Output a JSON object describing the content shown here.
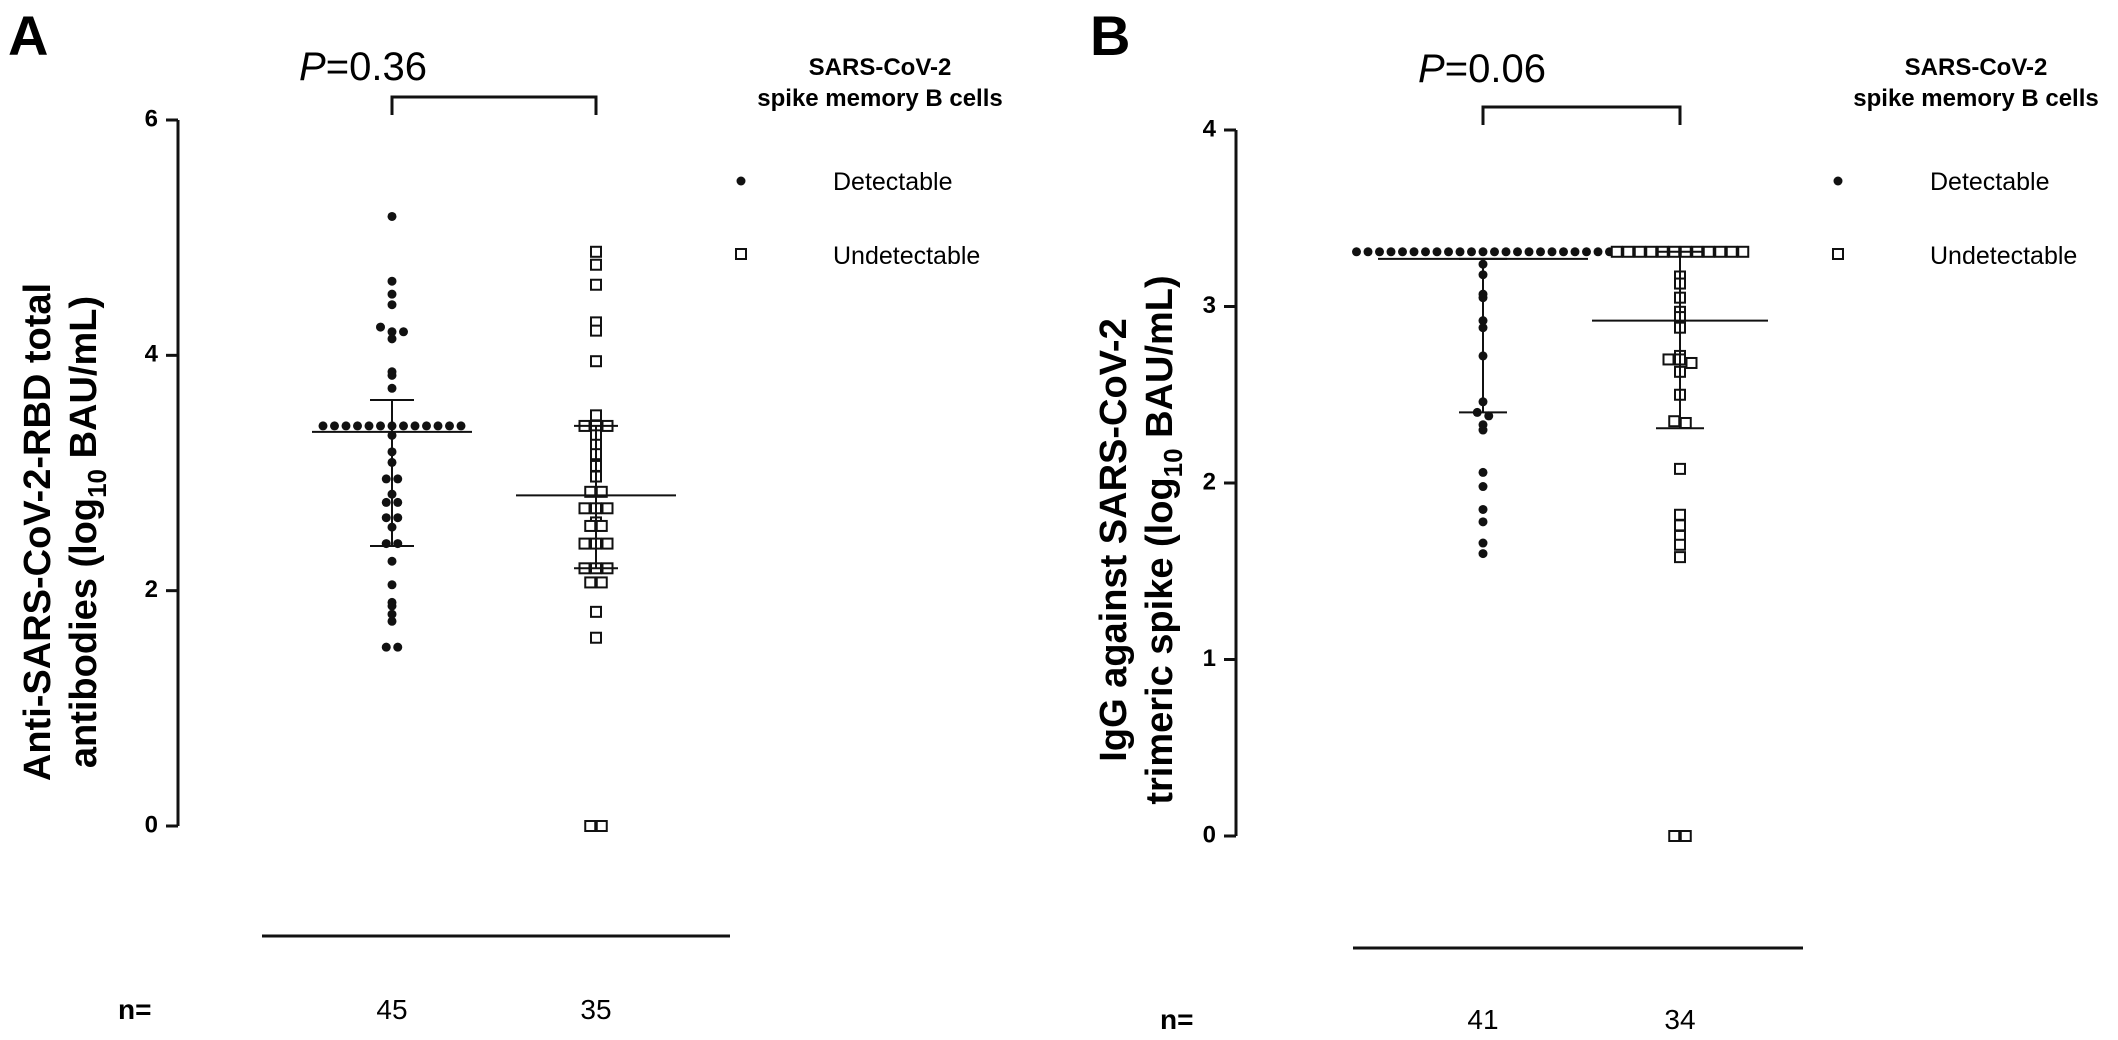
{
  "chart_data": [
    {
      "type": "scatter",
      "panel": "A",
      "ylabel_line1": "Anti-SARS-CoV-2-RBD total",
      "ylabel_line2_pre": "antibodies (log",
      "ylabel_line2_sub": "10",
      "ylabel_line2_post": " BAU/mL)",
      "ylim": [
        0,
        6
      ],
      "yticks": [
        "0",
        "2",
        "4",
        "6"
      ],
      "p_value_label": "P",
      "p_value_rest": "=0.36",
      "legend_title_1": "SARS-CoV-2",
      "legend_title_2": "spike memory B cells",
      "legend": [
        "Detectable",
        "Undetectable"
      ],
      "n_label": "n=",
      "groups": [
        {
          "name": "Detectable",
          "n": "45",
          "median": 3.35,
          "q1": 2.38,
          "q3": 3.62,
          "values": [
            5.18,
            4.63,
            4.52,
            4.43,
            4.24,
            4.2,
            4.2,
            4.14,
            3.86,
            3.83,
            3.72,
            3.4,
            3.4,
            3.4,
            3.4,
            3.4,
            3.4,
            3.4,
            3.4,
            3.4,
            3.4,
            3.4,
            3.4,
            3.4,
            3.32,
            3.18,
            3.09,
            2.95,
            2.95,
            2.82,
            2.75,
            2.75,
            2.62,
            2.62,
            2.54,
            2.4,
            2.4,
            2.25,
            2.05,
            1.9,
            1.87,
            1.8,
            1.74,
            1.52,
            1.52
          ]
        },
        {
          "name": "Undetectable",
          "n": "35",
          "median": 2.81,
          "q1": 2.19,
          "q3": 3.4,
          "values": [
            4.88,
            4.77,
            4.6,
            4.28,
            4.21,
            3.95,
            3.49,
            3.4,
            3.4,
            3.4,
            3.32,
            3.24,
            3.16,
            3.06,
            2.97,
            2.84,
            2.84,
            2.7,
            2.7,
            2.7,
            2.58,
            2.55,
            2.55,
            2.4,
            2.4,
            2.4,
            2.19,
            2.19,
            2.19,
            2.07,
            2.07,
            1.82,
            1.6,
            0.0,
            0.0
          ]
        }
      ]
    },
    {
      "type": "scatter",
      "panel": "B",
      "ylabel_line1": "IgG against SARS-CoV-2",
      "ylabel_line2_pre": "trimeric spike (log",
      "ylabel_line2_sub": "10",
      "ylabel_line2_post": " BAU/mL)",
      "ylim": [
        0,
        4
      ],
      "yticks": [
        "0",
        "1",
        "2",
        "3",
        "4"
      ],
      "p_value_label": "P",
      "p_value_rest": "=0.06",
      "legend_title_1": "SARS-CoV-2",
      "legend_title_2": "spike memory B cells",
      "legend": [
        "Detectable",
        "Undetectable"
      ],
      "n_label": "n=",
      "groups": [
        {
          "name": "Detectable",
          "n": "41",
          "median": 3.27,
          "q1": 2.4,
          "q3": 3.27,
          "values": [
            3.31,
            3.31,
            3.31,
            3.31,
            3.31,
            3.31,
            3.31,
            3.31,
            3.31,
            3.31,
            3.31,
            3.31,
            3.31,
            3.31,
            3.31,
            3.31,
            3.31,
            3.31,
            3.31,
            3.31,
            3.31,
            3.31,
            3.31,
            3.24,
            3.18,
            3.07,
            3.05,
            2.92,
            2.88,
            2.72,
            2.46,
            2.4,
            2.38,
            2.33,
            2.3,
            2.06,
            1.98,
            1.85,
            1.78,
            1.66,
            1.6
          ]
        },
        {
          "name": "Undetectable",
          "n": "34",
          "median": 2.92,
          "q1": 2.31,
          "q3": 3.31,
          "values": [
            3.31,
            3.31,
            3.31,
            3.31,
            3.31,
            3.31,
            3.31,
            3.31,
            3.31,
            3.31,
            3.31,
            3.31,
            3.17,
            3.13,
            3.05,
            2.97,
            2.94,
            2.88,
            2.72,
            2.7,
            2.7,
            2.68,
            2.63,
            2.5,
            2.35,
            2.34,
            2.08,
            1.82,
            1.76,
            1.7,
            1.65,
            1.58,
            0.0,
            0.0
          ]
        }
      ]
    }
  ]
}
